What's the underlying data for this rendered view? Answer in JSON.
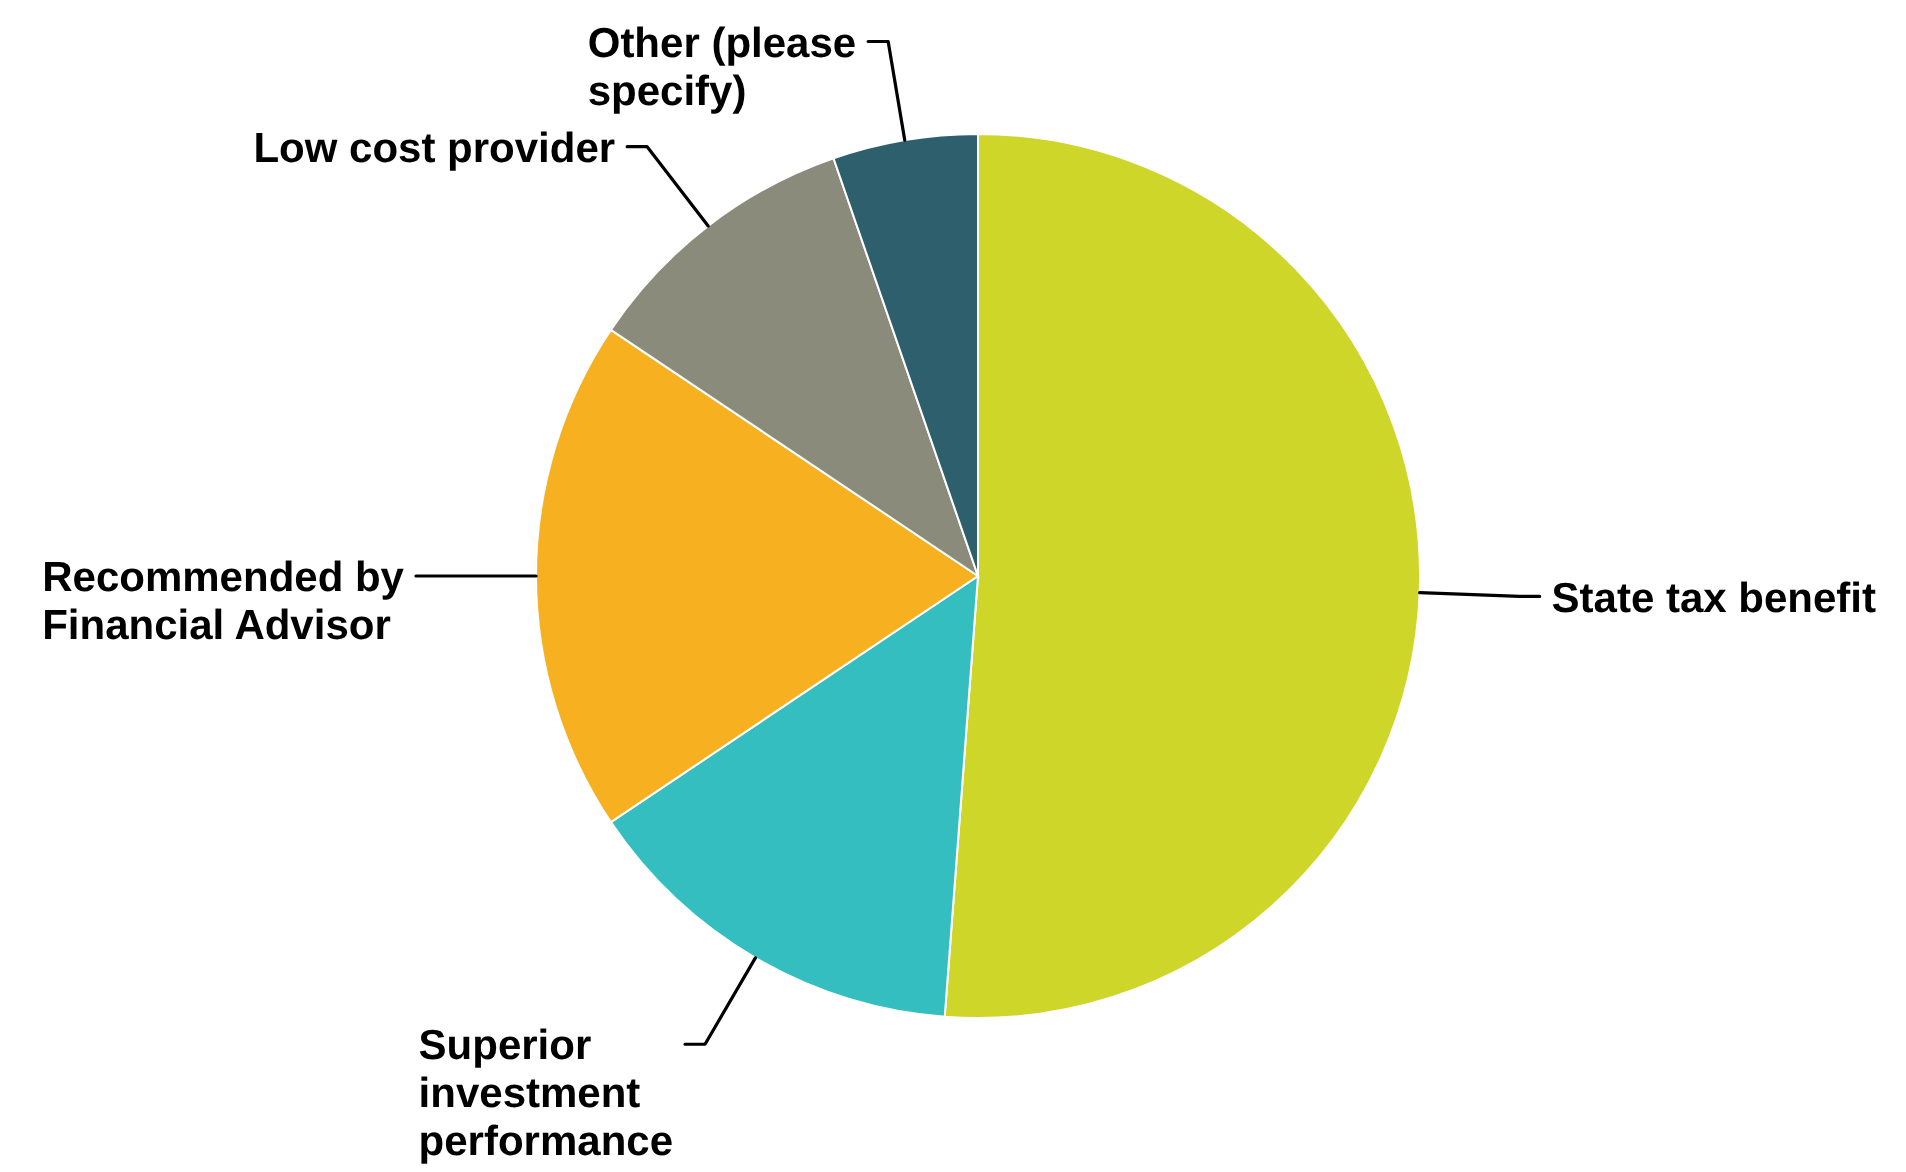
{
  "chart_data": {
    "type": "pie",
    "categories": [
      "State tax benefit",
      "Superior investment performance",
      "Recommended by Financial Advisor",
      "Low cost provider",
      "Other (please specify)"
    ],
    "values": [
      51.2,
      14.4,
      18.8,
      10.3,
      5.3
    ],
    "colors": [
      "#cfd62a",
      "#34bec0",
      "#f6b020",
      "#8a8b7b",
      "#2e5f6d"
    ]
  }
}
